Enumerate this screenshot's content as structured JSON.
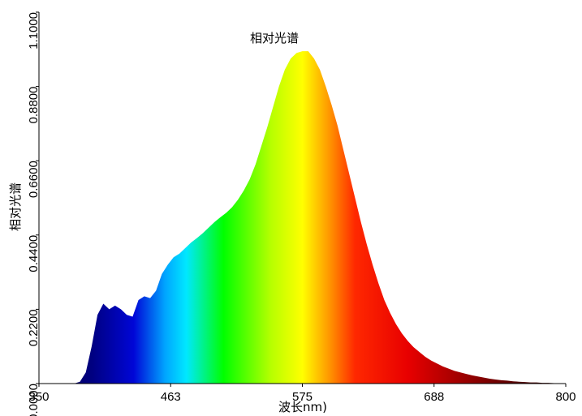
{
  "chart_data": {
    "type": "area",
    "title": "相对光谱",
    "xlabel": "波长nm)",
    "ylabel": "相对光谱",
    "xlim": [
      350,
      800
    ],
    "ylim": [
      0,
      1
    ],
    "x_ticks": [
      "350",
      "463",
      "575",
      "688",
      "800"
    ],
    "y_ticks": [
      "0.0000",
      "0.2200",
      "0.4400",
      "0.6600",
      "0.8800",
      "1.1000"
    ],
    "grid": false,
    "legend": "none",
    "fill": "visible-spectrum gradient (violet to red to black)",
    "series": [
      {
        "x": [
          380,
          385,
          390,
          395,
          400,
          405,
          410,
          415,
          420,
          425,
          430,
          435,
          440,
          445,
          450,
          455,
          460,
          465,
          470,
          475,
          480,
          485,
          490,
          495,
          500,
          505,
          510,
          515,
          520,
          525,
          530,
          535,
          540,
          545,
          550,
          555,
          560,
          565,
          570,
          575,
          580,
          585,
          590,
          595,
          600,
          605,
          610,
          615,
          620,
          625,
          630,
          635,
          640,
          645,
          650,
          655,
          660,
          665,
          670,
          675,
          680,
          685,
          690,
          695,
          700,
          705,
          710,
          715,
          720,
          725,
          730,
          735,
          740,
          745,
          750,
          755,
          760,
          765,
          770,
          775,
          780,
          785,
          790,
          795,
          800
        ],
        "values": [
          0.0,
          0.005,
          0.03,
          0.1,
          0.185,
          0.215,
          0.2,
          0.21,
          0.2,
          0.185,
          0.18,
          0.225,
          0.235,
          0.23,
          0.25,
          0.295,
          0.32,
          0.34,
          0.35,
          0.365,
          0.38,
          0.392,
          0.405,
          0.42,
          0.435,
          0.448,
          0.46,
          0.475,
          0.495,
          0.52,
          0.55,
          0.59,
          0.64,
          0.69,
          0.745,
          0.8,
          0.845,
          0.875,
          0.89,
          0.895,
          0.895,
          0.875,
          0.845,
          0.8,
          0.75,
          0.695,
          0.63,
          0.565,
          0.5,
          0.435,
          0.375,
          0.32,
          0.27,
          0.225,
          0.19,
          0.16,
          0.135,
          0.115,
          0.098,
          0.085,
          0.072,
          0.062,
          0.054,
          0.046,
          0.04,
          0.034,
          0.03,
          0.026,
          0.022,
          0.019,
          0.016,
          0.013,
          0.011,
          0.009,
          0.008,
          0.006,
          0.005,
          0.004,
          0.003,
          0.003,
          0.002,
          0.002,
          0.001,
          0.001,
          0.0
        ]
      }
    ]
  }
}
